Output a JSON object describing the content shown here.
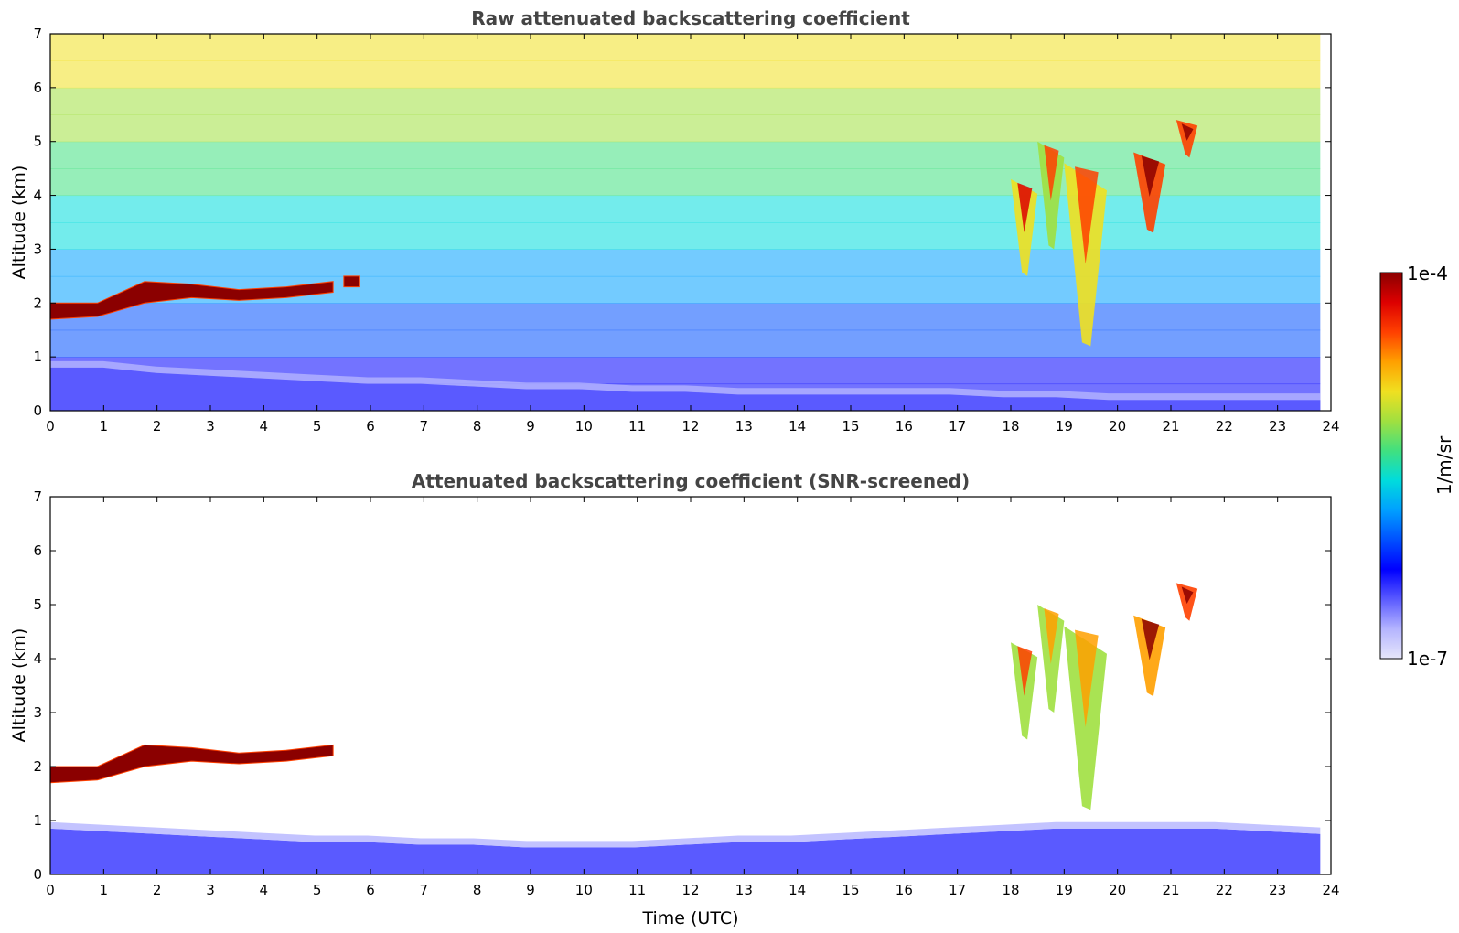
{
  "chart_data": [
    {
      "type": "heatmap",
      "title": "Raw attenuated backscattering coefficient",
      "xlabel": "",
      "ylabel": "Altitude (km)",
      "xlim": [
        0,
        24
      ],
      "ylim": [
        0,
        7
      ],
      "x_ticks": [
        "0",
        "1",
        "2",
        "3",
        "4",
        "5",
        "6",
        "7",
        "8",
        "9",
        "10",
        "11",
        "12",
        "13",
        "14",
        "15",
        "16",
        "17",
        "18",
        "19",
        "20",
        "21",
        "22",
        "23",
        "24"
      ],
      "y_ticks": [
        "0",
        "1",
        "2",
        "3",
        "4",
        "5",
        "6",
        "7"
      ],
      "data_end_hour": 23.8,
      "features": [
        {
          "name": "boundary layer aerosol",
          "kind": "layer",
          "x_start": 0,
          "x_end": 23.8,
          "top_km": [
            0.8,
            0.8,
            0.7,
            0.65,
            0.6,
            0.55,
            0.5,
            0.5,
            0.45,
            0.4,
            0.4,
            0.35,
            0.35,
            0.3,
            0.3,
            0.3,
            0.3,
            0.3,
            0.25,
            0.25,
            0.2,
            0.2,
            0.2,
            0.2,
            0.2
          ],
          "level": 0.18
        },
        {
          "name": "low cloud layer",
          "kind": "cloud",
          "x_start": 0,
          "x_end": 5.3,
          "base_km": [
            1.7,
            1.75,
            2.0,
            2.1,
            2.05,
            2.1,
            2.2
          ],
          "top_km": [
            2.0,
            2.0,
            2.4,
            2.35,
            2.25,
            2.3,
            2.4
          ],
          "level": 0.98
        },
        {
          "name": "cloud patch",
          "kind": "cloud",
          "x_start": 5.5,
          "x_end": 5.8,
          "base_km": [
            2.3
          ],
          "top_km": [
            2.5
          ],
          "level": 0.98
        },
        {
          "name": "ice cloud",
          "kind": "virga",
          "x_start": 18.0,
          "x_end": 18.5,
          "base_km": [
            2.5
          ],
          "top_km": [
            4.3
          ],
          "level": 0.7
        },
        {
          "name": "ice cloud",
          "kind": "virga",
          "x_start": 18.5,
          "x_end": 19.0,
          "base_km": [
            3.0
          ],
          "top_km": [
            5.0
          ],
          "level": 0.62
        },
        {
          "name": "ice cloud",
          "kind": "virga",
          "x_start": 19.0,
          "x_end": 19.8,
          "base_km": [
            1.2
          ],
          "top_km": [
            4.6
          ],
          "level": 0.66
        },
        {
          "name": "ice cloud",
          "kind": "virga",
          "x_start": 20.3,
          "x_end": 20.9,
          "base_km": [
            3.3
          ],
          "top_km": [
            4.8
          ],
          "level": 0.82
        },
        {
          "name": "ice cloud",
          "kind": "virga",
          "x_start": 21.1,
          "x_end": 21.5,
          "base_km": [
            4.7
          ],
          "top_km": [
            5.4
          ],
          "level": 0.88
        }
      ]
    },
    {
      "type": "heatmap",
      "title": "Attenuated backscattering coefficient (SNR-screened)",
      "xlabel": "Time (UTC)",
      "ylabel": "Altitude (km)",
      "xlim": [
        0,
        24
      ],
      "ylim": [
        0,
        7
      ],
      "x_ticks": [
        "0",
        "1",
        "2",
        "3",
        "4",
        "5",
        "6",
        "7",
        "8",
        "9",
        "10",
        "11",
        "12",
        "13",
        "14",
        "15",
        "16",
        "17",
        "18",
        "19",
        "20",
        "21",
        "22",
        "23",
        "24"
      ],
      "y_ticks": [
        "0",
        "1",
        "2",
        "3",
        "4",
        "5",
        "6",
        "7"
      ],
      "data_end_hour": 23.8,
      "features": [
        {
          "name": "boundary layer aerosol",
          "kind": "layer",
          "x_start": 0,
          "x_end": 23.8,
          "top_km": [
            0.85,
            0.8,
            0.75,
            0.7,
            0.65,
            0.6,
            0.6,
            0.55,
            0.55,
            0.5,
            0.5,
            0.5,
            0.55,
            0.6,
            0.6,
            0.65,
            0.7,
            0.75,
            0.8,
            0.85,
            0.85,
            0.85,
            0.85,
            0.8,
            0.75
          ],
          "level": 0.18
        },
        {
          "name": "low cloud layer",
          "kind": "cloud",
          "x_start": 0,
          "x_end": 5.3,
          "base_km": [
            1.7,
            1.75,
            2.0,
            2.1,
            2.05,
            2.1,
            2.2
          ],
          "top_km": [
            2.0,
            2.0,
            2.4,
            2.35,
            2.25,
            2.3,
            2.4
          ],
          "level": 0.98
        },
        {
          "name": "ice cloud",
          "kind": "virga",
          "x_start": 18.0,
          "x_end": 18.5,
          "base_km": [
            2.5
          ],
          "top_km": [
            4.3
          ],
          "level": 0.62
        },
        {
          "name": "ice cloud",
          "kind": "virga",
          "x_start": 18.5,
          "x_end": 19.0,
          "base_km": [
            3.0
          ],
          "top_km": [
            5.0
          ],
          "level": 0.58
        },
        {
          "name": "ice cloud",
          "kind": "virga",
          "x_start": 19.0,
          "x_end": 19.8,
          "base_km": [
            1.2
          ],
          "top_km": [
            4.6
          ],
          "level": 0.6
        },
        {
          "name": "ice cloud",
          "kind": "virga",
          "x_start": 20.3,
          "x_end": 20.9,
          "base_km": [
            3.3
          ],
          "top_km": [
            4.8
          ],
          "level": 0.78
        },
        {
          "name": "ice cloud",
          "kind": "virga",
          "x_start": 21.1,
          "x_end": 21.5,
          "base_km": [
            4.7
          ],
          "top_km": [
            5.4
          ],
          "level": 0.86
        }
      ]
    }
  ],
  "colorbar": {
    "max_label": "1e-4",
    "min_label": "1e-7",
    "unit_label": "1/m/sr",
    "colors": [
      "#e6e6fa",
      "#b4b4ff",
      "#5a5aff",
      "#0000ff",
      "#0050ff",
      "#00a0ff",
      "#00dcdc",
      "#40e080",
      "#a0e040",
      "#f0e020",
      "#ffa000",
      "#ff4000",
      "#dd0000",
      "#8b0000"
    ]
  }
}
